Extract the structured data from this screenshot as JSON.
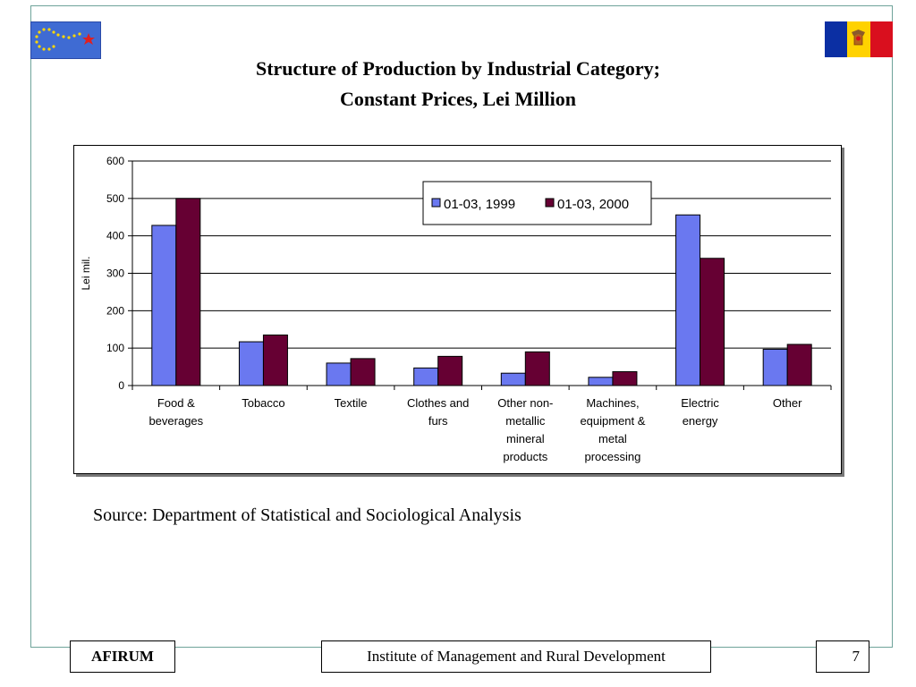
{
  "slide": {
    "title_line1": "Structure of Production by Industrial Category;",
    "title_line2": "Constant Prices, Lei Million",
    "source": "Source: Department of Statistical and Sociological Analysis",
    "footer_left": "AFIRUM",
    "footer_center": "Institute of Management and Rural Development",
    "page_number": "7"
  },
  "colors": {
    "series1": "#6a78f0",
    "series2": "#660033",
    "frame": "#6fa39a"
  },
  "icons": {
    "left_logo": "eu-stars-logo-icon",
    "right_logo": "moldova-flag-icon"
  },
  "chart_data": {
    "type": "bar",
    "ylabel": "Lei mil.",
    "ylim": [
      0,
      600
    ],
    "yticks": [
      0,
      100,
      200,
      300,
      400,
      500,
      600
    ],
    "grid": true,
    "legend_position": "top-right",
    "categories": [
      [
        "Food &",
        "beverages"
      ],
      [
        "Tobacco"
      ],
      [
        "Textile"
      ],
      [
        "Clothes and",
        "furs"
      ],
      [
        "Other non-",
        "metallic",
        "mineral",
        "products"
      ],
      [
        "Machines,",
        "equipment &",
        "metal",
        "processing"
      ],
      [
        "Electric",
        "energy"
      ],
      [
        "Other"
      ]
    ],
    "series": [
      {
        "name": "01-03, 1999",
        "values": [
          428,
          117,
          60,
          47,
          33,
          22,
          456,
          97
        ]
      },
      {
        "name": "01-03, 2000",
        "values": [
          500,
          135,
          72,
          78,
          90,
          37,
          340,
          110
        ]
      }
    ]
  }
}
